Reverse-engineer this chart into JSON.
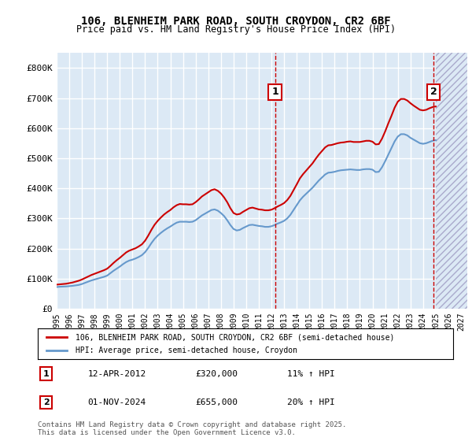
{
  "title": "106, BLENHEIM PARK ROAD, SOUTH CROYDON, CR2 6BF",
  "subtitle": "Price paid vs. HM Land Registry's House Price Index (HPI)",
  "ylabel_ticks": [
    "£0",
    "£100K",
    "£200K",
    "£300K",
    "£400K",
    "£500K",
    "£600K",
    "£700K",
    "£800K"
  ],
  "ytick_values": [
    0,
    100000,
    200000,
    300000,
    400000,
    500000,
    600000,
    700000,
    800000
  ],
  "ylim": [
    0,
    850000
  ],
  "xlim_start": 1995.0,
  "xlim_end": 2027.5,
  "bg_color": "#dce9f5",
  "plot_bg_color": "#dce9f5",
  "grid_color": "#ffffff",
  "red_line_color": "#cc0000",
  "blue_line_color": "#6699cc",
  "legend_entry1": "106, BLENHEIM PARK ROAD, SOUTH CROYDON, CR2 6BF (semi-detached house)",
  "legend_entry2": "HPI: Average price, semi-detached house, Croydon",
  "sale1_year": 2012.28,
  "sale1_price": 320000,
  "sale1_label": "1",
  "sale1_date": "12-APR-2012",
  "sale1_amount": "£320,000",
  "sale1_hpi": "11% ↑ HPI",
  "sale2_year": 2024.83,
  "sale2_price": 655000,
  "sale2_label": "2",
  "sale2_date": "01-NOV-2024",
  "sale2_amount": "£655,000",
  "sale2_hpi": "20% ↑ HPI",
  "footer": "Contains HM Land Registry data © Crown copyright and database right 2025.\nThis data is licensed under the Open Government Licence v3.0.",
  "hpi_data": {
    "years": [
      1995.0,
      1995.25,
      1995.5,
      1995.75,
      1996.0,
      1996.25,
      1996.5,
      1996.75,
      1997.0,
      1997.25,
      1997.5,
      1997.75,
      1998.0,
      1998.25,
      1998.5,
      1998.75,
      1999.0,
      1999.25,
      1999.5,
      1999.75,
      2000.0,
      2000.25,
      2000.5,
      2000.75,
      2001.0,
      2001.25,
      2001.5,
      2001.75,
      2002.0,
      2002.25,
      2002.5,
      2002.75,
      2003.0,
      2003.25,
      2003.5,
      2003.75,
      2004.0,
      2004.25,
      2004.5,
      2004.75,
      2005.0,
      2005.25,
      2005.5,
      2005.75,
      2006.0,
      2006.25,
      2006.5,
      2006.75,
      2007.0,
      2007.25,
      2007.5,
      2007.75,
      2008.0,
      2008.25,
      2008.5,
      2008.75,
      2009.0,
      2009.25,
      2009.5,
      2009.75,
      2010.0,
      2010.25,
      2010.5,
      2010.75,
      2011.0,
      2011.25,
      2011.5,
      2011.75,
      2012.0,
      2012.25,
      2012.5,
      2012.75,
      2013.0,
      2013.25,
      2013.5,
      2013.75,
      2014.0,
      2014.25,
      2014.5,
      2014.75,
      2015.0,
      2015.25,
      2015.5,
      2015.75,
      2016.0,
      2016.25,
      2016.5,
      2016.75,
      2017.0,
      2017.25,
      2017.5,
      2017.75,
      2018.0,
      2018.25,
      2018.5,
      2018.75,
      2019.0,
      2019.25,
      2019.5,
      2019.75,
      2020.0,
      2020.25,
      2020.5,
      2020.75,
      2021.0,
      2021.25,
      2021.5,
      2021.75,
      2022.0,
      2022.25,
      2022.5,
      2022.75,
      2023.0,
      2023.25,
      2023.5,
      2023.75,
      2024.0,
      2024.25,
      2024.5,
      2024.75,
      2025.0
    ],
    "values": [
      72000,
      73000,
      73500,
      74000,
      75000,
      76000,
      77500,
      79000,
      82000,
      86000,
      90000,
      94000,
      97000,
      100000,
      103000,
      106000,
      110000,
      118000,
      126000,
      133000,
      140000,
      148000,
      155000,
      160000,
      163000,
      167000,
      172000,
      178000,
      188000,
      202000,
      218000,
      232000,
      243000,
      252000,
      260000,
      267000,
      273000,
      280000,
      286000,
      289000,
      289000,
      289000,
      288000,
      289000,
      294000,
      302000,
      310000,
      316000,
      322000,
      328000,
      330000,
      326000,
      318000,
      308000,
      294000,
      278000,
      265000,
      260000,
      262000,
      268000,
      273000,
      278000,
      279000,
      277000,
      275000,
      274000,
      272000,
      272000,
      274000,
      278000,
      283000,
      287000,
      292000,
      300000,
      312000,
      328000,
      344000,
      360000,
      372000,
      382000,
      392000,
      402000,
      414000,
      426000,
      436000,
      446000,
      452000,
      453000,
      455000,
      458000,
      460000,
      461000,
      462000,
      463000,
      462000,
      461000,
      461000,
      463000,
      464000,
      464000,
      462000,
      454000,
      455000,
      470000,
      490000,
      512000,
      534000,
      556000,
      572000,
      580000,
      580000,
      576000,
      568000,
      562000,
      556000,
      550000,
      548000,
      550000,
      554000,
      558000,
      560000
    ]
  },
  "red_data": {
    "years": [
      1995.0,
      1995.25,
      1995.5,
      1995.75,
      1996.0,
      1996.25,
      1996.5,
      1996.75,
      1997.0,
      1997.25,
      1997.5,
      1997.75,
      1998.0,
      1998.25,
      1998.5,
      1998.75,
      1999.0,
      1999.25,
      1999.5,
      1999.75,
      2000.0,
      2000.25,
      2000.5,
      2000.75,
      2001.0,
      2001.25,
      2001.5,
      2001.75,
      2002.0,
      2002.25,
      2002.5,
      2002.75,
      2003.0,
      2003.25,
      2003.5,
      2003.75,
      2004.0,
      2004.25,
      2004.5,
      2004.75,
      2005.0,
      2005.25,
      2005.5,
      2005.75,
      2006.0,
      2006.25,
      2006.5,
      2006.75,
      2007.0,
      2007.25,
      2007.5,
      2007.75,
      2008.0,
      2008.25,
      2008.5,
      2008.75,
      2009.0,
      2009.25,
      2009.5,
      2009.75,
      2010.0,
      2010.25,
      2010.5,
      2010.75,
      2011.0,
      2011.25,
      2011.5,
      2011.75,
      2012.0,
      2012.25,
      2012.5,
      2012.75,
      2013.0,
      2013.25,
      2013.5,
      2013.75,
      2014.0,
      2014.25,
      2014.5,
      2014.75,
      2015.0,
      2015.25,
      2015.5,
      2015.75,
      2016.0,
      2016.25,
      2016.5,
      2016.75,
      2017.0,
      2017.25,
      2017.5,
      2017.75,
      2018.0,
      2018.25,
      2018.5,
      2018.75,
      2019.0,
      2019.25,
      2019.5,
      2019.75,
      2020.0,
      2020.25,
      2020.5,
      2020.75,
      2021.0,
      2021.25,
      2021.5,
      2021.75,
      2022.0,
      2022.25,
      2022.5,
      2022.75,
      2023.0,
      2023.25,
      2023.5,
      2023.75,
      2024.0,
      2024.25,
      2024.5,
      2024.75,
      2025.0
    ],
    "values": [
      80000,
      81000,
      82000,
      83000,
      85000,
      87000,
      90000,
      93000,
      97000,
      102000,
      107000,
      112000,
      116000,
      120000,
      124000,
      128000,
      133000,
      142000,
      152000,
      161000,
      169000,
      178000,
      187000,
      193000,
      197000,
      201000,
      207000,
      214000,
      226000,
      243000,
      262000,
      279000,
      292000,
      303000,
      313000,
      321000,
      328000,
      337000,
      344000,
      348000,
      347000,
      347000,
      346000,
      347000,
      354000,
      363000,
      373000,
      380000,
      387000,
      394000,
      397000,
      392000,
      383000,
      370000,
      354000,
      334000,
      318000,
      313000,
      315000,
      322000,
      328000,
      334000,
      336000,
      333000,
      330000,
      329000,
      327000,
      327000,
      329000,
      334000,
      340000,
      345000,
      351000,
      361000,
      375000,
      394000,
      413000,
      433000,
      447000,
      459000,
      471000,
      483000,
      498000,
      512000,
      524000,
      536000,
      543000,
      544000,
      547000,
      550000,
      552000,
      553000,
      555000,
      556000,
      554000,
      554000,
      554000,
      556000,
      558000,
      558000,
      555000,
      546000,
      547000,
      565000,
      589000,
      616000,
      641000,
      668000,
      688000,
      697000,
      697000,
      692000,
      683000,
      675000,
      668000,
      661000,
      659000,
      661000,
      666000,
      670000,
      672000
    ]
  }
}
